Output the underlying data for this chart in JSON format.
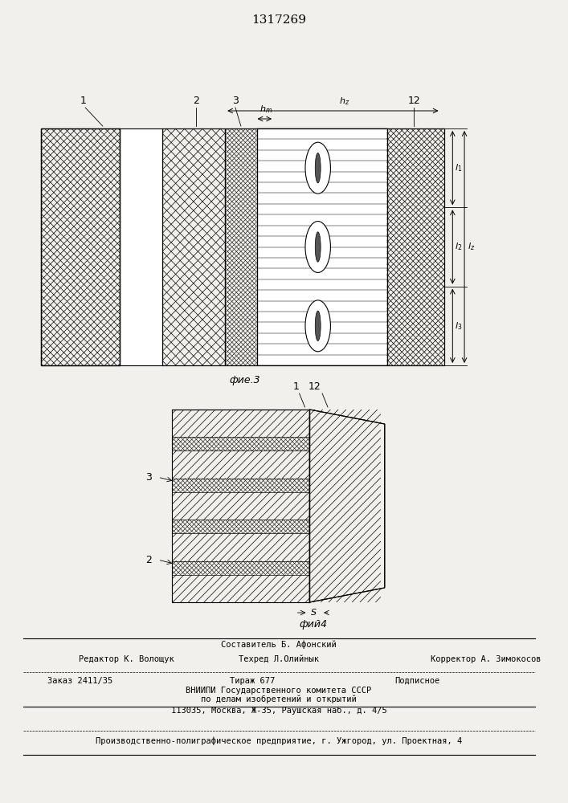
{
  "title": "1317269",
  "title_fontsize": 11,
  "bg_color": "#f2f0ed",
  "fig3_label": "фие.3",
  "fig4_label": "фий4",
  "footer_line1": "Составитель Б. Афонский",
  "footer_line2a": "Редактор К. Волощук",
  "footer_line2b": "Техред Л.Олийнык",
  "footer_line2c": "Корректор А. Зимокосов",
  "footer_line3a": "Заказ 2411/35",
  "footer_line3b": "Тираж 677",
  "footer_line3c": "Подписное",
  "footer_line4": "ВНИИПИ Государственного комитета СССР",
  "footer_line5": "по делам изобретений и открытий",
  "footer_line6": "113035, Москва, Ж-35, Раушская наб., д. 4/5",
  "footer_line7": "Производственно-полиграфическое предприятие, г. Ужгород, ул. Проектная, 4"
}
